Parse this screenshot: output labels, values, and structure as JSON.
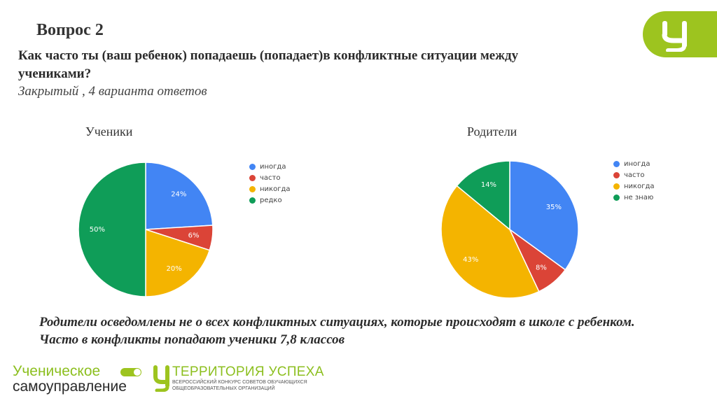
{
  "header": {
    "title": "Вопрос 2",
    "question": "Как часто ты (ваш ребенок)  попадаешь (попадает)в конфликтные ситуации между учениками?",
    "question_type": "Закрытый , 4 варианта ответов"
  },
  "chart_data": [
    {
      "type": "pie",
      "title": "Ученики",
      "labels": [
        "иногда",
        "часто",
        "никогда",
        "редко"
      ],
      "values": [
        24,
        6,
        20,
        50
      ],
      "value_labels": [
        "24%",
        "6%",
        "20%",
        "50%"
      ],
      "colors": [
        "#4285f4",
        "#db4437",
        "#f4b400",
        "#0f9d58"
      ],
      "legend_position": "right"
    },
    {
      "type": "pie",
      "title": "Родители",
      "labels": [
        "иногда",
        "часто",
        "никогда",
        "не знаю"
      ],
      "values": [
        35,
        8,
        43,
        14
      ],
      "value_labels": [
        "35%",
        "8%",
        "43%",
        "14%"
      ],
      "colors": [
        "#4285f4",
        "#db4437",
        "#f4b400",
        "#0f9d58"
      ],
      "legend_position": "right"
    }
  ],
  "conclusion": {
    "line1": "Родители осведомлены не о всех конфликтных ситуациях, которые происходят в школе с ребенком.",
    "line2": "Часто в конфликты попадают ученики 7,8 классов"
  },
  "logos": {
    "left_line1": "Ученическое",
    "left_line2": "самоуправление",
    "right_title": "ТЕРРИТОРИЯ УСПЕХА",
    "right_sub1": "ВСЕРОССИЙСКИЙ КОНКУРС СОВЕТОВ ОБУЧАЮЩИХСЯ",
    "right_sub2": "ОБЩЕОБРАЗОВАТЕЛЬНЫХ ОРГАНИЗАЦИЙ",
    "brand_color": "#9dc41f"
  }
}
